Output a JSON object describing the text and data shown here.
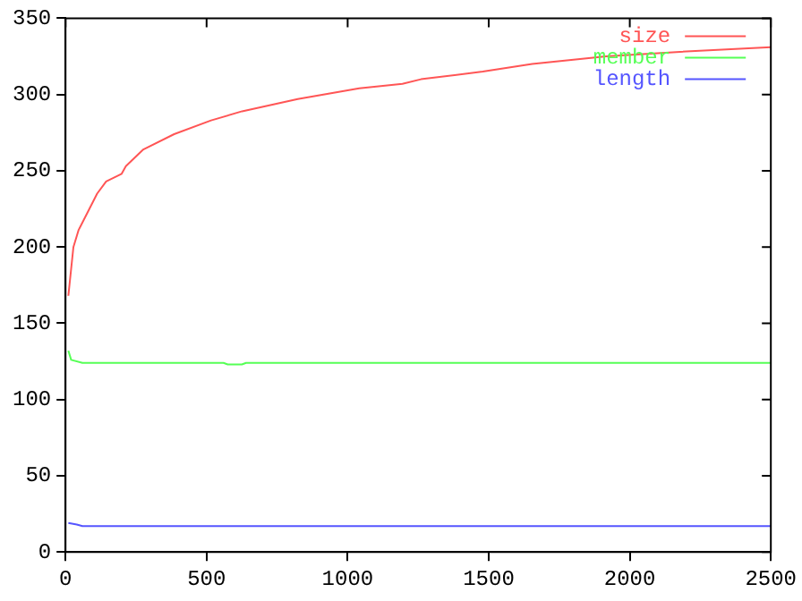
{
  "chart_data": {
    "type": "line",
    "xlim": [
      0,
      2500
    ],
    "ylim": [
      0,
      350
    ],
    "xticks": [
      0,
      500,
      1000,
      1500,
      2000,
      2500
    ],
    "yticks": [
      0,
      50,
      100,
      150,
      200,
      250,
      300,
      350
    ],
    "grid": false,
    "legend": "top right",
    "marker": "none",
    "line_style": "solid",
    "series": [
      {
        "name": "size",
        "color": "#ff5555",
        "x": [
          10,
          28,
          46,
          79,
          112,
          144,
          199,
          214,
          276,
          385,
          516,
          626,
          823,
          1041,
          1194,
          1260,
          1479,
          1654,
          1916,
          2178,
          2500
        ],
        "values": [
          168,
          200,
          211,
          223,
          235,
          243,
          248,
          253,
          264,
          274,
          283,
          289,
          297,
          304,
          307,
          310,
          315,
          320,
          325,
          328,
          331
        ]
      },
      {
        "name": "member",
        "color": "#55ff55",
        "x": [
          10,
          20,
          60,
          560,
          575,
          625,
          640,
          2500
        ],
        "values": [
          132,
          126,
          124,
          124,
          123,
          123,
          124,
          124
        ]
      },
      {
        "name": "length",
        "color": "#5555ff",
        "x": [
          10,
          40,
          60,
          2500
        ],
        "values": [
          19,
          18,
          17,
          17
        ]
      }
    ]
  }
}
